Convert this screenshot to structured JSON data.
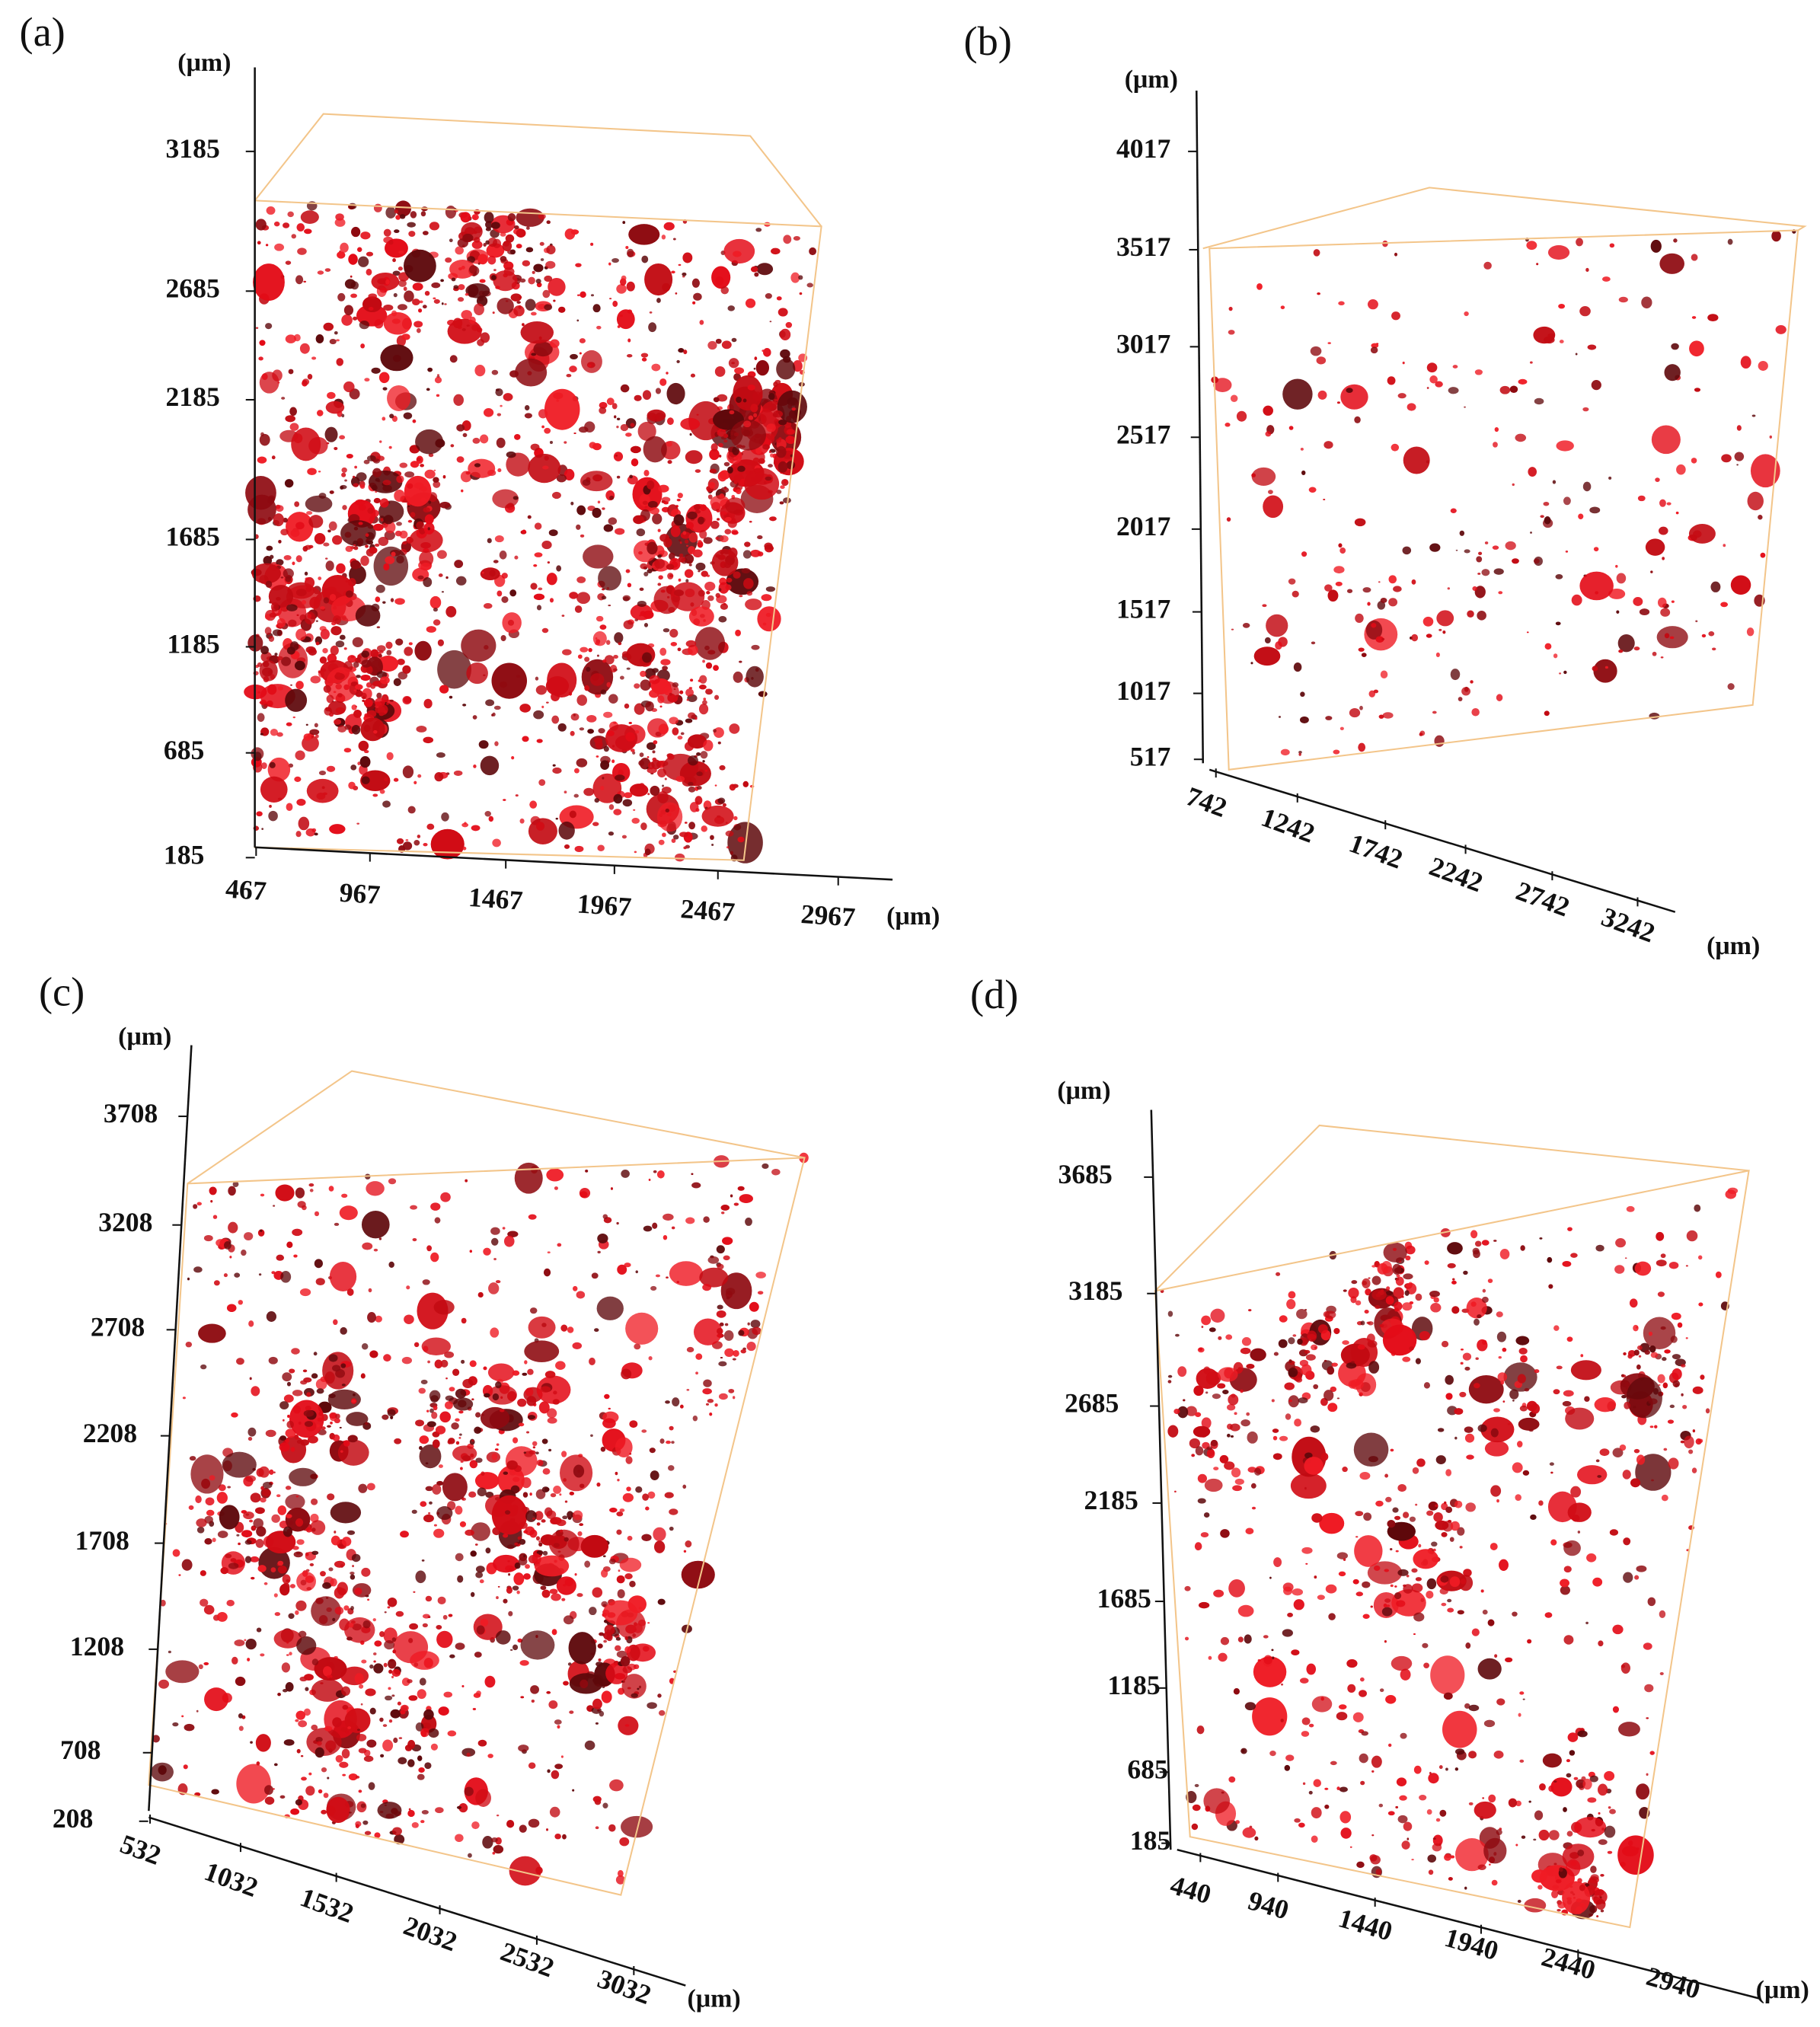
{
  "panels": [
    {
      "label": "(a)",
      "unit": "(μm)",
      "yticks": [
        3185,
        2685,
        2185,
        1685,
        1185,
        685,
        185
      ],
      "xticks": [
        467,
        967,
        1467,
        1967,
        2467,
        2967
      ]
    },
    {
      "label": "(b)",
      "unit": "(μm)",
      "yticks": [
        4017,
        3517,
        3017,
        2517,
        2017,
        1517,
        1017,
        517
      ],
      "xticks": [
        742,
        1242,
        1742,
        2242,
        2742,
        3242
      ]
    },
    {
      "label": "(c)",
      "unit": "(μm)",
      "yticks": [
        3708,
        3208,
        2708,
        2208,
        1708,
        1208,
        708,
        208
      ],
      "xticks": [
        532,
        1032,
        1532,
        2032,
        2532,
        3032
      ]
    },
    {
      "label": "(d)",
      "unit": "(μm)",
      "yticks": [
        3685,
        3185,
        2685,
        2185,
        1685,
        1185,
        685,
        185
      ],
      "xticks": [
        440,
        940,
        1440,
        1940,
        2440,
        2940
      ]
    }
  ]
}
